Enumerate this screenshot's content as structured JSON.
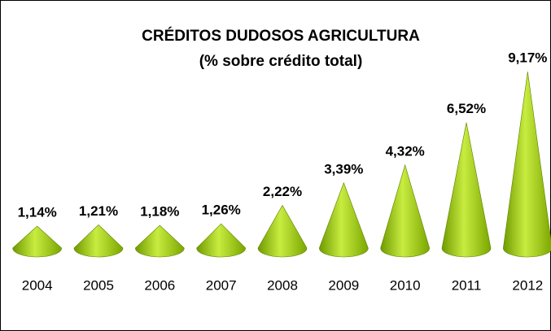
{
  "chart_data": {
    "type": "cone",
    "title": "CRÉDITOS DUDOSOS AGRICULTURA",
    "subtitle": "(% sobre crédito total)",
    "categories": [
      "2004",
      "2005",
      "2006",
      "2007",
      "2008",
      "2009",
      "2010",
      "2011",
      "2012"
    ],
    "values": [
      1.14,
      1.21,
      1.18,
      1.26,
      2.22,
      3.39,
      4.32,
      6.52,
      9.17
    ],
    "value_labels": [
      "1,14%",
      "1,21%",
      "1,18%",
      "1,26%",
      "2,22%",
      "3,39%",
      "4,32%",
      "6,52%",
      "9,17%"
    ],
    "color": "#99cc00"
  }
}
